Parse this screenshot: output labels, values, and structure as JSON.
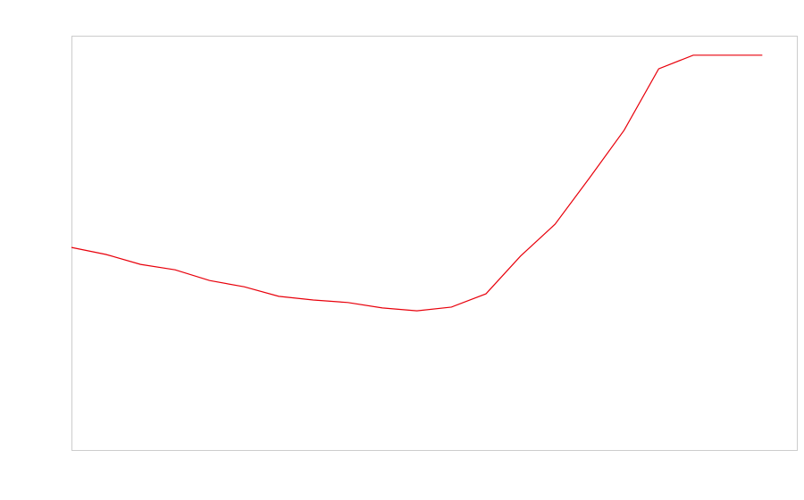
{
  "chart_data": {
    "type": "line",
    "categories": [
      null,
      null,
      null,
      null,
      null,
      null,
      null,
      null,
      null,
      null,
      null,
      null,
      null,
      null,
      null,
      null,
      null,
      null,
      null,
      null,
      null
    ],
    "series": [
      {
        "color": "#e8000b",
        "values": [
          48.9,
          47.2,
          44.8,
          43.5,
          40.9,
          39.4,
          37.1,
          36.2,
          35.6,
          34.3,
          33.6,
          34.5,
          37.7,
          46.8,
          54.5,
          65.7,
          77.2,
          92.0,
          95.3,
          95.3,
          95.3
        ]
      }
    ],
    "ylim": [
      0,
      100
    ]
  }
}
